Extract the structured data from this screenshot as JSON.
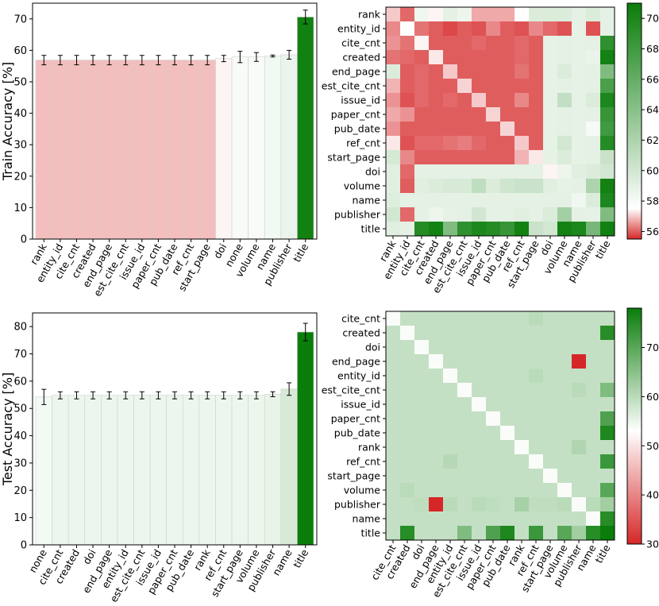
{
  "chart_data": [
    {
      "id": "train-bar",
      "type": "bar",
      "ylabel": "Train Accuracy [%]",
      "ylim": [
        0,
        75
      ],
      "yticks": [
        0,
        10,
        20,
        30,
        40,
        50,
        60,
        70
      ],
      "categories": [
        "rank",
        "entity_id",
        "cite_cnt",
        "created",
        "end_page",
        "est_cite_cnt",
        "issue_id",
        "paper_cnt",
        "pub_date",
        "ref_cnt",
        "start_page",
        "doi",
        "none",
        "volume",
        "name",
        "publisher",
        "title"
      ],
      "values": [
        56.9,
        56.9,
        56.9,
        56.9,
        56.9,
        56.9,
        56.9,
        56.9,
        56.9,
        56.9,
        56.9,
        57.4,
        57.9,
        57.9,
        58.2,
        58.6,
        70.6
      ],
      "errors": [
        1.5,
        1.5,
        1.5,
        1.5,
        1.5,
        1.5,
        1.5,
        1.5,
        1.5,
        1.5,
        1.5,
        1.0,
        1.8,
        1.4,
        0.3,
        1.4,
        2.2
      ],
      "colorscale": {
        "vmin": 55.5,
        "vmid": 57.5,
        "vmax": 71
      }
    },
    {
      "id": "train-heatmap",
      "type": "heatmap",
      "rows": [
        "rank",
        "entity_id",
        "cite_cnt",
        "created",
        "end_page",
        "est_cite_cnt",
        "issue_id",
        "paper_cnt",
        "pub_date",
        "ref_cnt",
        "start_page",
        "doi",
        "volume",
        "name",
        "publisher",
        "title"
      ],
      "cols": [
        "rank",
        "entity_id",
        "cite_cnt",
        "created",
        "end_page",
        "est_cite_cnt",
        "issue_id",
        "paper_cnt",
        "pub_date",
        "ref_cnt",
        "start_page",
        "doi",
        "volume",
        "name",
        "publisher",
        "title"
      ],
      "values": [
        [
          57.0,
          56.1,
          58.3,
          57.4,
          59.0,
          58.5,
          56.7,
          56.7,
          56.7,
          57.5,
          59.5,
          59.5,
          59.5,
          59.0,
          59.5,
          59.0
        ],
        [
          56.4,
          57.5,
          56.2,
          56.0,
          55.8,
          56.0,
          55.9,
          56.4,
          56.0,
          55.9,
          56.4,
          56.1,
          55.9,
          58.9,
          55.9,
          59.0
        ],
        [
          56.5,
          56.2,
          57.4,
          56.0,
          56.0,
          56.0,
          56.1,
          56.0,
          56.0,
          56.1,
          56.0,
          58.9,
          59.0,
          58.9,
          59.0,
          69.0
        ],
        [
          56.2,
          56.1,
          56.0,
          57.3,
          56.0,
          56.0,
          56.0,
          56.0,
          56.0,
          56.1,
          56.0,
          58.9,
          59.0,
          58.9,
          58.6,
          70.5
        ],
        [
          59.5,
          56.0,
          56.1,
          56.0,
          57.0,
          56.0,
          56.0,
          56.0,
          56.0,
          56.2,
          56.0,
          58.9,
          59.5,
          58.9,
          59.0,
          64.5
        ],
        [
          56.8,
          56.0,
          56.1,
          56.0,
          56.0,
          57.1,
          56.0,
          56.0,
          56.0,
          56.0,
          56.0,
          58.9,
          59.0,
          58.9,
          59.0,
          67.5
        ],
        [
          56.5,
          55.9,
          56.1,
          56.0,
          56.1,
          56.0,
          57.0,
          56.0,
          56.0,
          56.4,
          56.0,
          58.9,
          60.8,
          58.9,
          59.5,
          70.0
        ],
        [
          56.7,
          56.5,
          56.0,
          56.0,
          56.0,
          56.0,
          56.0,
          57.1,
          56.0,
          56.0,
          56.0,
          58.9,
          59.0,
          58.9,
          59.0,
          68.5
        ],
        [
          56.5,
          56.0,
          56.0,
          56.0,
          56.0,
          56.0,
          56.0,
          56.0,
          57.1,
          56.0,
          56.0,
          58.9,
          59.0,
          58.9,
          58.0,
          68.0
        ],
        [
          57.3,
          55.9,
          56.1,
          56.1,
          56.2,
          56.3,
          56.1,
          56.0,
          56.0,
          57.0,
          56.0,
          58.9,
          60.0,
          58.9,
          59.0,
          69.5
        ],
        [
          59.8,
          56.4,
          56.0,
          56.0,
          56.0,
          56.0,
          56.0,
          56.0,
          56.0,
          56.8,
          57.3,
          58.9,
          59.5,
          58.9,
          59.0,
          60.5
        ],
        [
          59.2,
          56.1,
          59.0,
          59.0,
          59.0,
          59.0,
          59.0,
          59.0,
          59.0,
          59.0,
          59.0,
          57.4,
          58.5,
          59.2,
          59.5,
          60.0
        ],
        [
          59.2,
          56.0,
          59.2,
          59.5,
          59.7,
          59.7,
          61.0,
          59.5,
          60.2,
          60.5,
          60.5,
          59.2,
          58.9,
          59.0,
          62.0,
          70.5
        ],
        [
          59.3,
          59.0,
          59.0,
          59.0,
          59.0,
          59.0,
          59.0,
          59.0,
          59.0,
          59.0,
          59.0,
          59.0,
          59.0,
          58.3,
          59.5,
          70.0
        ],
        [
          60.0,
          56.1,
          59.0,
          58.5,
          58.9,
          59.0,
          60.0,
          59.0,
          59.0,
          59.2,
          59.0,
          59.5,
          62.5,
          59.0,
          58.8,
          64.5
        ],
        [
          59.2,
          59.0,
          69.5,
          70.5,
          64.5,
          69.0,
          70.0,
          69.5,
          68.5,
          70.5,
          60.5,
          60.0,
          70.5,
          70.0,
          65.0,
          70.6
        ]
      ],
      "colorbar_ticks": [
        56,
        58,
        60,
        62,
        64,
        66,
        68,
        70
      ],
      "colorscale": {
        "vmin": 55.5,
        "vmid": 57.5,
        "vmax": 71
      }
    },
    {
      "id": "test-bar",
      "type": "bar",
      "ylabel": "Test Accuracy [%]",
      "ylim": [
        0,
        85
      ],
      "yticks": [
        0,
        10,
        20,
        30,
        40,
        50,
        60,
        70,
        80
      ],
      "categories": [
        "none",
        "cite_cnt",
        "created",
        "doi",
        "end_page",
        "entity_id",
        "est_cite_cnt",
        "issue_id",
        "paper_cnt",
        "pub_date",
        "rank",
        "ref_cnt",
        "start_page",
        "volume",
        "publisher",
        "name",
        "title"
      ],
      "values": [
        54.2,
        54.8,
        54.8,
        54.8,
        54.8,
        54.8,
        54.8,
        54.8,
        54.8,
        54.8,
        54.8,
        54.8,
        54.8,
        54.8,
        55.2,
        57.1,
        78.0
      ],
      "errors": [
        2.8,
        1.3,
        1.3,
        1.3,
        1.3,
        1.3,
        1.3,
        1.3,
        1.3,
        1.3,
        1.3,
        1.3,
        1.3,
        1.3,
        0.9,
        2.3,
        3.2
      ],
      "colorscale": {
        "vmin": 30,
        "vmid": 53,
        "vmax": 78
      }
    },
    {
      "id": "test-heatmap",
      "type": "heatmap",
      "rows": [
        "cite_cnt",
        "created",
        "doi",
        "end_page",
        "entity_id",
        "est_cite_cnt",
        "issue_id",
        "paper_cnt",
        "pub_date",
        "rank",
        "ref_cnt",
        "start_page",
        "volume",
        "publisher",
        "name",
        "title"
      ],
      "cols": [
        "cite_cnt",
        "created",
        "doi",
        "end_page",
        "entity_id",
        "est_cite_cnt",
        "issue_id",
        "paper_cnt",
        "pub_date",
        "rank",
        "ref_cnt",
        "start_page",
        "volume",
        "publisher",
        "name",
        "title"
      ],
      "values": [
        [
          53.5,
          59.0,
          59.0,
          59.0,
          59.0,
          59.0,
          59.0,
          59.0,
          59.0,
          59.0,
          60.0,
          59.0,
          59.0,
          59.0,
          59.0,
          59.0
        ],
        [
          59.0,
          53.5,
          59.0,
          59.0,
          59.0,
          59.0,
          59.0,
          59.0,
          59.0,
          59.0,
          59.0,
          59.0,
          59.0,
          59.0,
          59.0,
          75.0
        ],
        [
          59.0,
          59.0,
          53.5,
          59.0,
          59.0,
          59.0,
          59.0,
          59.0,
          59.0,
          59.0,
          59.0,
          59.0,
          59.0,
          59.0,
          59.0,
          59.0
        ],
        [
          59.0,
          59.0,
          59.0,
          53.5,
          59.0,
          59.0,
          59.0,
          59.0,
          59.0,
          59.0,
          59.0,
          59.0,
          59.0,
          30.0,
          59.0,
          59.0
        ],
        [
          59.0,
          59.0,
          59.0,
          59.0,
          53.5,
          59.0,
          59.0,
          59.0,
          59.0,
          59.0,
          60.0,
          59.0,
          59.0,
          59.0,
          59.0,
          59.0
        ],
        [
          59.0,
          59.0,
          59.0,
          59.0,
          59.0,
          53.5,
          59.0,
          59.0,
          59.0,
          59.0,
          59.0,
          59.0,
          59.0,
          60.0,
          59.0,
          66.0
        ],
        [
          59.0,
          59.0,
          59.0,
          59.0,
          59.0,
          59.0,
          53.5,
          59.0,
          59.0,
          59.0,
          59.0,
          59.0,
          59.0,
          59.0,
          59.0,
          59.0
        ],
        [
          59.0,
          59.0,
          59.0,
          59.0,
          59.0,
          59.0,
          59.0,
          53.5,
          59.0,
          59.0,
          59.0,
          59.0,
          59.0,
          59.0,
          59.0,
          71.0
        ],
        [
          59.0,
          59.0,
          59.0,
          59.0,
          59.0,
          59.0,
          59.0,
          59.0,
          53.5,
          59.0,
          59.0,
          59.0,
          59.0,
          59.0,
          59.0,
          76.0
        ],
        [
          59.0,
          59.0,
          59.0,
          59.0,
          59.0,
          59.0,
          59.0,
          59.0,
          59.0,
          53.5,
          59.0,
          59.0,
          59.0,
          61.0,
          59.0,
          59.0
        ],
        [
          59.0,
          59.0,
          59.0,
          59.0,
          60.5,
          59.0,
          59.0,
          59.0,
          59.0,
          59.0,
          53.5,
          59.0,
          59.0,
          59.0,
          59.0,
          73.0
        ],
        [
          59.0,
          59.0,
          59.0,
          59.0,
          59.0,
          59.0,
          59.0,
          59.0,
          59.0,
          59.0,
          59.0,
          53.5,
          59.0,
          59.0,
          59.0,
          59.0
        ],
        [
          59.0,
          60.0,
          59.0,
          59.0,
          59.0,
          59.0,
          59.0,
          59.0,
          59.0,
          59.0,
          59.0,
          59.0,
          53.5,
          59.0,
          59.0,
          70.0
        ],
        [
          59.0,
          59.0,
          59.5,
          30.0,
          60.0,
          59.0,
          60.0,
          59.5,
          59.0,
          62.0,
          59.5,
          59.5,
          60.0,
          53.5,
          60.0,
          62.5
        ],
        [
          59.0,
          59.0,
          59.0,
          59.0,
          59.0,
          59.0,
          59.0,
          59.0,
          59.0,
          59.0,
          59.0,
          59.0,
          59.0,
          59.0,
          53.5,
          75.0
        ],
        [
          59.0,
          75.0,
          59.0,
          59.0,
          59.0,
          66.0,
          59.0,
          71.0,
          76.0,
          59.0,
          73.0,
          59.0,
          70.0,
          62.5,
          75.0,
          78.0
        ]
      ],
      "colorbar_ticks": [
        30,
        40,
        50,
        60,
        70
      ],
      "colorscale": {
        "vmin": 30,
        "vmid": 53,
        "vmax": 78
      }
    }
  ],
  "colors": {
    "low": "#d62728",
    "mid": "#ffffff",
    "high": "#0a7d0a",
    "error_bar": "#000000",
    "bar_edge": "#cfcfcf",
    "axis": "#000000"
  }
}
